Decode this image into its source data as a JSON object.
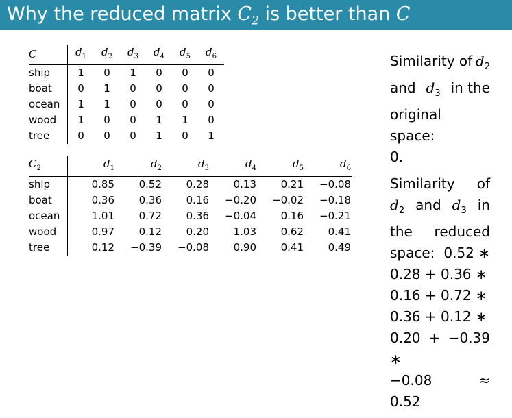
{
  "slide": {
    "title_pre": "Why the reduced matrix",
    "title_mid": "is better than",
    "title_C": "C",
    "title_C2": "C",
    "title_C2_sub": "2"
  },
  "table1": {
    "corner": "C",
    "columns": [
      "d1",
      "d2",
      "d3",
      "d4",
      "d5",
      "d6"
    ],
    "rows": [
      {
        "label": "ship",
        "values": [
          "1",
          "0",
          "1",
          "0",
          "0",
          "0"
        ]
      },
      {
        "label": "boat",
        "values": [
          "0",
          "1",
          "0",
          "0",
          "0",
          "0"
        ]
      },
      {
        "label": "ocean",
        "values": [
          "1",
          "1",
          "0",
          "0",
          "0",
          "0"
        ]
      },
      {
        "label": "wood",
        "values": [
          "1",
          "0",
          "0",
          "1",
          "1",
          "0"
        ]
      },
      {
        "label": "tree",
        "values": [
          "0",
          "0",
          "0",
          "1",
          "0",
          "1"
        ]
      }
    ]
  },
  "table2": {
    "corner": "C",
    "corner_sub": "2",
    "columns": [
      "d1",
      "d2",
      "d3",
      "d4",
      "d5",
      "d6"
    ],
    "rows": [
      {
        "label": "ship",
        "values": [
          "0.85",
          "0.52",
          "0.28",
          "0.13",
          "0.21",
          "−0.08"
        ]
      },
      {
        "label": "boat",
        "values": [
          "0.36",
          "0.36",
          "0.16",
          "−0.20",
          "−0.02",
          "−0.18"
        ]
      },
      {
        "label": "ocean",
        "values": [
          "1.01",
          "0.72",
          "0.36",
          "−0.04",
          "0.16",
          "−0.21"
        ]
      },
      {
        "label": "wood",
        "values": [
          "0.97",
          "0.12",
          "0.20",
          "1.03",
          "0.62",
          "0.41"
        ]
      },
      {
        "label": "tree",
        "values": [
          "0.12",
          "−0.39",
          "−0.08",
          "0.90",
          "0.41",
          "0.49"
        ]
      }
    ]
  },
  "right": {
    "p1": {
      "l1": "Similarity of",
      "l1_var": "d",
      "l1_sub": "2",
      "l2_a": "and",
      "l2_var": "d",
      "l2_sub": "3",
      "l2_b": "in the",
      "l3": "original space:",
      "l4": "0."
    },
    "p2": {
      "l1_a": "Similarity",
      "l1_b": "of",
      "l2_var1": "d",
      "l2_sub1": "2",
      "l2_mid": "and",
      "l2_var2": "d",
      "l2_sub2": "3",
      "l2_end": "in",
      "l3_a": "the",
      "l3_b": "reduced",
      "l4_a": "space:",
      "l4_b": "0.52 ∗",
      "l5": "0.28 + 0.36 ∗",
      "l6": "0.16 + 0.72 ∗",
      "l7": "0.36 + 0.12 ∗",
      "l8": "0.20 + −0.39 ∗",
      "l9_a": "−0.08",
      "l9_b": "≈",
      "l10": "0.52"
    }
  }
}
